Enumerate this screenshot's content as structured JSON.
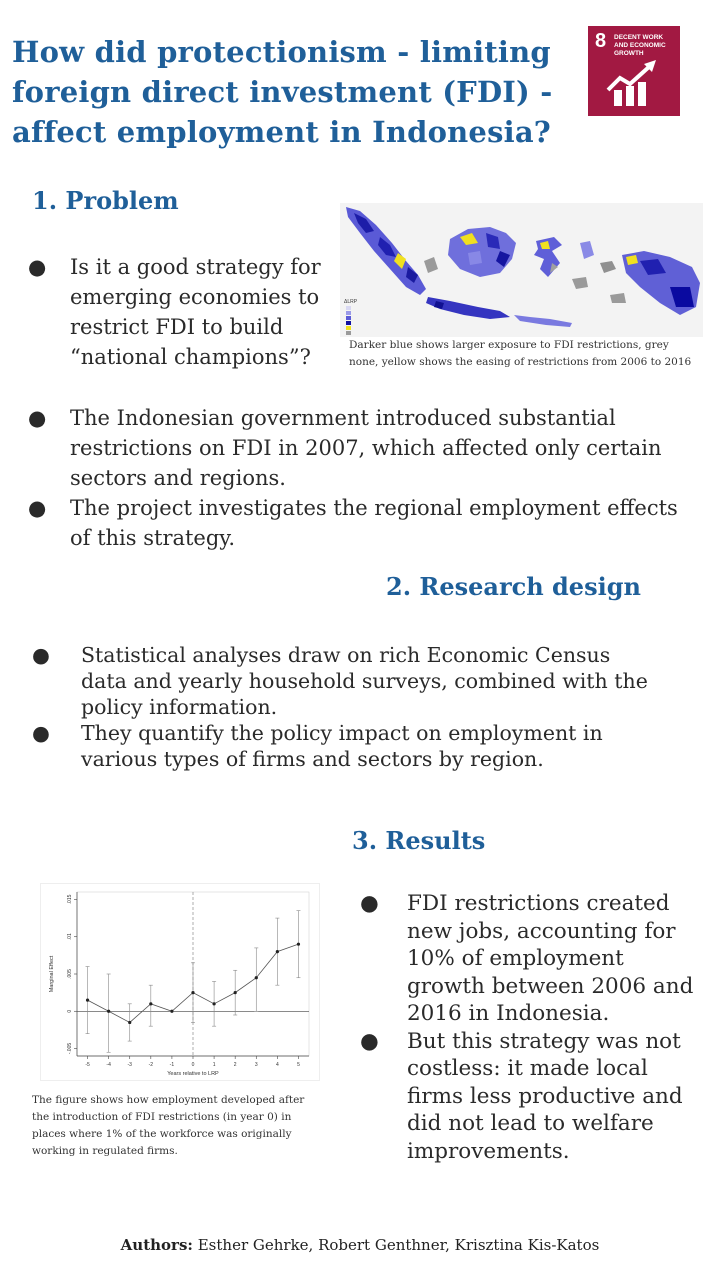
{
  "title": "How did protectionism - limiting foreign direct investment (FDI) - affect employment in Indonesia?",
  "sdg": {
    "number": "8",
    "label": "DECENT WORK AND ECONOMIC GROWTH",
    "color": "#a21942"
  },
  "problem": {
    "heading": "1. Problem",
    "bullets": [
      "Is it a good strategy for emerging economies to restrict FDI to build “national champions”?",
      "The Indonesian government introduced substantial restrictions on FDI in 2007, which affected only certain sectors and regions.",
      "The project investigates the regional employment effects of this strategy."
    ],
    "map_caption": "Darker blue shows larger exposure to FDI restrictions, grey none, yellow shows the easing of restrictions from 2006 to 2016",
    "map_legend_title": "ΔLRP"
  },
  "research": {
    "heading": "2. Research design",
    "bullets": [
      "Statistical analyses draw on rich Economic Census data and yearly household surveys, combined with the policy information.",
      "They quantify the policy impact on employment in various types of  firms and sectors by region."
    ]
  },
  "results": {
    "heading": "3. Results",
    "bullets": [
      "FDI restrictions created new jobs,  accounting for 10% of employment growth between 2006 and 2016 in Indonesia.",
      "But this strategy was not costless: it made local firms less productive and did not lead to welfare improvements."
    ],
    "figure_caption": "The figure shows how employment developed after the introduction of FDI restrictions (in year 0) in places where 1% of the workforce was originally working in regulated firms."
  },
  "authors": {
    "label": "Authors:",
    "names": "Esther Gehrke, Robert Genthner, Krisztina Kis-Katos"
  },
  "colors": {
    "heading": "#1f5f99",
    "accent": "#a21942"
  },
  "chart_data": {
    "type": "scatter",
    "title": "",
    "xlabel": "Years relative to LRP",
    "ylabel": "Marginal Effect",
    "x": [
      -5,
      -4,
      -3,
      -2,
      -1,
      0,
      1,
      2,
      3,
      4,
      5
    ],
    "y": [
      0.0015,
      0.0,
      -0.0015,
      0.001,
      0.0,
      0.0025,
      0.001,
      0.0025,
      0.0045,
      0.008,
      0.009
    ],
    "ci_low": [
      -0.003,
      -0.0055,
      -0.004,
      -0.002,
      0.0,
      -0.0015,
      -0.002,
      -0.0005,
      0.0,
      0.0035,
      0.0045
    ],
    "ci_high": [
      0.006,
      0.005,
      0.001,
      0.0035,
      0.0,
      0.0065,
      0.004,
      0.0055,
      0.0085,
      0.0125,
      0.0135
    ],
    "xlim": [
      -5.5,
      5.5
    ],
    "ylim": [
      -0.006,
      0.016
    ],
    "yticks": [
      -0.005,
      0,
      0.005,
      0.01,
      0.015
    ],
    "ytick_labels": [
      "-.005",
      "0",
      ".005",
      ".01",
      ".015"
    ],
    "xtick_labels": [
      "-5",
      "-4",
      "-3",
      "-2",
      "-1",
      "0",
      "1",
      "2",
      "3",
      "4",
      "5"
    ],
    "reference_x": 0,
    "reference_y": 0
  }
}
